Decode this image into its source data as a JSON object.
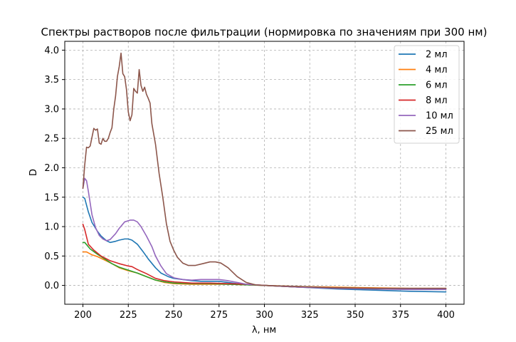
{
  "chart_data": {
    "type": "line",
    "title": "Спектры растворов после фильтрации (нормировка по значениям при 300 нм)",
    "xlabel": "λ, нм",
    "ylabel": "D",
    "xlim": [
      190,
      410
    ],
    "ylim": [
      -0.32,
      4.15
    ],
    "xticks": [
      200,
      225,
      250,
      275,
      300,
      325,
      350,
      375,
      400
    ],
    "yticks": [
      0.0,
      0.5,
      1.0,
      1.5,
      2.0,
      2.5,
      3.0,
      3.5,
      4.0
    ],
    "xtick_labels": [
      "200",
      "225",
      "250",
      "275",
      "300",
      "325",
      "350",
      "375",
      "400"
    ],
    "ytick_labels": [
      "0.0",
      "0.5",
      "1.0",
      "1.5",
      "2.0",
      "2.5",
      "3.0",
      "3.5",
      "4.0"
    ],
    "grid": true,
    "legend_position": "top-right",
    "series": [
      {
        "name": "2 мл",
        "color": "#1f77b4",
        "points": [
          [
            200,
            1.5
          ],
          [
            201,
            1.48
          ],
          [
            203,
            1.25
          ],
          [
            205,
            1.07
          ],
          [
            208,
            0.92
          ],
          [
            210,
            0.84
          ],
          [
            213,
            0.76
          ],
          [
            215,
            0.73
          ],
          [
            218,
            0.75
          ],
          [
            220,
            0.77
          ],
          [
            223,
            0.79
          ],
          [
            225,
            0.79
          ],
          [
            227,
            0.77
          ],
          [
            230,
            0.7
          ],
          [
            233,
            0.58
          ],
          [
            236,
            0.45
          ],
          [
            240,
            0.3
          ],
          [
            243,
            0.21
          ],
          [
            247,
            0.15
          ],
          [
            250,
            0.12
          ],
          [
            255,
            0.1
          ],
          [
            260,
            0.08
          ],
          [
            265,
            0.07
          ],
          [
            270,
            0.07
          ],
          [
            275,
            0.07
          ],
          [
            280,
            0.05
          ],
          [
            285,
            0.03
          ],
          [
            290,
            0.01
          ],
          [
            300,
            0.0
          ],
          [
            320,
            -0.03
          ],
          [
            340,
            -0.06
          ],
          [
            360,
            -0.08
          ],
          [
            380,
            -0.1
          ],
          [
            400,
            -0.11
          ]
        ]
      },
      {
        "name": "4 мл",
        "color": "#ff7f0e",
        "points": [
          [
            200,
            0.57
          ],
          [
            202,
            0.57
          ],
          [
            205,
            0.52
          ],
          [
            208,
            0.49
          ],
          [
            212,
            0.43
          ],
          [
            216,
            0.37
          ],
          [
            220,
            0.3
          ],
          [
            225,
            0.25
          ],
          [
            230,
            0.21
          ],
          [
            235,
            0.15
          ],
          [
            240,
            0.09
          ],
          [
            245,
            0.05
          ],
          [
            250,
            0.03
          ],
          [
            260,
            0.02
          ],
          [
            270,
            0.02
          ],
          [
            280,
            0.02
          ],
          [
            290,
            0.01
          ],
          [
            300,
            0.0
          ],
          [
            320,
            -0.02
          ],
          [
            340,
            -0.03
          ],
          [
            360,
            -0.04
          ],
          [
            380,
            -0.05
          ],
          [
            400,
            -0.05
          ]
        ]
      },
      {
        "name": "6 мл",
        "color": "#2ca02c",
        "points": [
          [
            200,
            0.73
          ],
          [
            201,
            0.73
          ],
          [
            204,
            0.62
          ],
          [
            208,
            0.53
          ],
          [
            212,
            0.45
          ],
          [
            216,
            0.37
          ],
          [
            220,
            0.31
          ],
          [
            225,
            0.26
          ],
          [
            230,
            0.21
          ],
          [
            235,
            0.15
          ],
          [
            240,
            0.09
          ],
          [
            245,
            0.06
          ],
          [
            250,
            0.04
          ],
          [
            260,
            0.03
          ],
          [
            270,
            0.03
          ],
          [
            280,
            0.02
          ],
          [
            290,
            0.01
          ],
          [
            300,
            0.0
          ],
          [
            320,
            -0.03
          ],
          [
            340,
            -0.04
          ],
          [
            360,
            -0.05
          ],
          [
            380,
            -0.06
          ],
          [
            400,
            -0.06
          ]
        ]
      },
      {
        "name": "8 мл",
        "color": "#d62728",
        "points": [
          [
            200,
            1.04
          ],
          [
            201,
            0.95
          ],
          [
            203,
            0.7
          ],
          [
            206,
            0.6
          ],
          [
            210,
            0.5
          ],
          [
            215,
            0.42
          ],
          [
            220,
            0.37
          ],
          [
            225,
            0.33
          ],
          [
            227,
            0.32
          ],
          [
            230,
            0.27
          ],
          [
            235,
            0.2
          ],
          [
            240,
            0.12
          ],
          [
            245,
            0.08
          ],
          [
            250,
            0.06
          ],
          [
            260,
            0.04
          ],
          [
            270,
            0.04
          ],
          [
            280,
            0.03
          ],
          [
            290,
            0.02
          ],
          [
            300,
            0.0
          ],
          [
            320,
            -0.03
          ],
          [
            340,
            -0.04
          ],
          [
            360,
            -0.05
          ],
          [
            380,
            -0.06
          ],
          [
            400,
            -0.06
          ]
        ]
      },
      {
        "name": "10 мл",
        "color": "#9467bd",
        "points": [
          [
            200,
            1.65
          ],
          [
            201,
            1.82
          ],
          [
            202,
            1.78
          ],
          [
            203,
            1.6
          ],
          [
            205,
            1.2
          ],
          [
            207,
            0.98
          ],
          [
            209,
            0.85
          ],
          [
            211,
            0.79
          ],
          [
            213,
            0.76
          ],
          [
            215,
            0.78
          ],
          [
            218,
            0.88
          ],
          [
            220,
            0.97
          ],
          [
            223,
            1.08
          ],
          [
            226,
            1.11
          ],
          [
            228,
            1.11
          ],
          [
            230,
            1.08
          ],
          [
            232,
            1.0
          ],
          [
            235,
            0.84
          ],
          [
            238,
            0.66
          ],
          [
            240,
            0.5
          ],
          [
            243,
            0.33
          ],
          [
            246,
            0.2
          ],
          [
            250,
            0.13
          ],
          [
            255,
            0.1
          ],
          [
            260,
            0.09
          ],
          [
            265,
            0.1
          ],
          [
            270,
            0.1
          ],
          [
            275,
            0.1
          ],
          [
            280,
            0.08
          ],
          [
            285,
            0.05
          ],
          [
            290,
            0.02
          ],
          [
            300,
            0.0
          ],
          [
            320,
            -0.03
          ],
          [
            340,
            -0.05
          ],
          [
            360,
            -0.06
          ],
          [
            380,
            -0.07
          ],
          [
            400,
            -0.07
          ]
        ]
      },
      {
        "name": "25 мл",
        "color": "#8c564b",
        "points": [
          [
            200,
            1.65
          ],
          [
            201,
            2.05
          ],
          [
            202,
            2.35
          ],
          [
            203,
            2.34
          ],
          [
            204,
            2.37
          ],
          [
            205,
            2.52
          ],
          [
            206,
            2.67
          ],
          [
            207,
            2.64
          ],
          [
            208,
            2.66
          ],
          [
            209,
            2.42
          ],
          [
            210,
            2.4
          ],
          [
            211,
            2.5
          ],
          [
            212,
            2.45
          ],
          [
            213,
            2.45
          ],
          [
            214,
            2.5
          ],
          [
            215,
            2.6
          ],
          [
            216,
            2.68
          ],
          [
            217,
            3.0
          ],
          [
            218,
            3.22
          ],
          [
            219,
            3.55
          ],
          [
            220,
            3.72
          ],
          [
            221,
            3.95
          ],
          [
            222,
            3.6
          ],
          [
            223,
            3.55
          ],
          [
            224,
            3.33
          ],
          [
            225,
            2.95
          ],
          [
            226,
            2.8
          ],
          [
            227,
            2.9
          ],
          [
            228,
            3.35
          ],
          [
            229,
            3.3
          ],
          [
            230,
            3.27
          ],
          [
            231,
            3.67
          ],
          [
            232,
            3.4
          ],
          [
            233,
            3.3
          ],
          [
            234,
            3.37
          ],
          [
            235,
            3.25
          ],
          [
            236,
            3.18
          ],
          [
            237,
            3.1
          ],
          [
            238,
            2.75
          ],
          [
            240,
            2.4
          ],
          [
            242,
            1.9
          ],
          [
            244,
            1.5
          ],
          [
            246,
            1.05
          ],
          [
            248,
            0.75
          ],
          [
            250,
            0.6
          ],
          [
            252,
            0.48
          ],
          [
            255,
            0.38
          ],
          [
            258,
            0.34
          ],
          [
            262,
            0.34
          ],
          [
            266,
            0.37
          ],
          [
            270,
            0.4
          ],
          [
            273,
            0.4
          ],
          [
            276,
            0.38
          ],
          [
            280,
            0.3
          ],
          [
            285,
            0.15
          ],
          [
            290,
            0.05
          ],
          [
            295,
            0.01
          ],
          [
            300,
            0.0
          ],
          [
            320,
            -0.02
          ],
          [
            340,
            -0.04
          ],
          [
            360,
            -0.05
          ],
          [
            380,
            -0.05
          ],
          [
            400,
            -0.05
          ]
        ]
      }
    ]
  }
}
